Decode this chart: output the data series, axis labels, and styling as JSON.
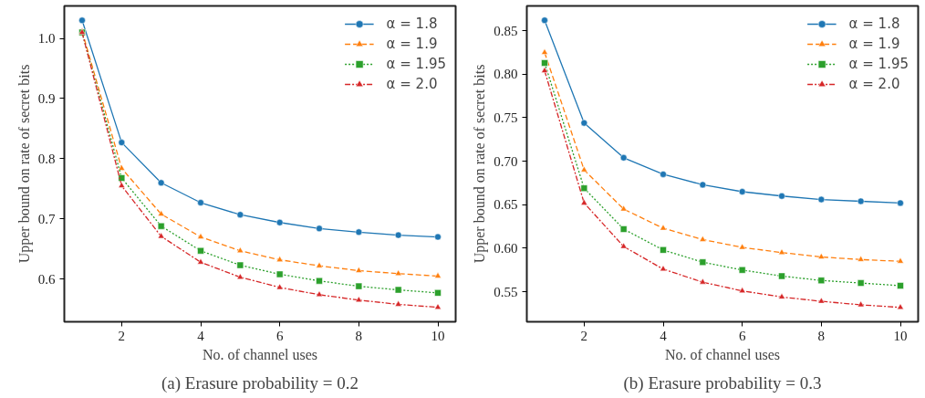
{
  "chart_data": [
    {
      "type": "line",
      "title": "(a) Erasure probability = 0.2",
      "xlabel": "No. of channel uses",
      "ylabel": "Upper bound on rate of secret bits",
      "x": [
        1,
        2,
        3,
        4,
        5,
        6,
        7,
        8,
        9,
        10
      ],
      "xlim": [
        0.55,
        10.45
      ],
      "xticks": [
        2,
        4,
        6,
        8,
        10
      ],
      "ylim": [
        0.529,
        1.054
      ],
      "yticks": [
        {
          "value": 0.6,
          "label": "0.6"
        },
        {
          "value": 0.7,
          "label": "0.7"
        },
        {
          "value": 0.8,
          "label": "0.8"
        },
        {
          "value": 0.9,
          "label": "0.9"
        },
        {
          "value": 1.0,
          "label": "1.0"
        }
      ],
      "legend": "top right",
      "grid": false,
      "series": [
        {
          "name": "α = 1.8",
          "color": "#1f77b4",
          "marker": "circle",
          "line_style": "solid",
          "values": [
            1.03,
            0.827,
            0.76,
            0.727,
            0.707,
            0.694,
            0.684,
            0.678,
            0.673,
            0.67
          ]
        },
        {
          "name": "α = 1.9",
          "color": "#ff7f0e",
          "marker": "triangle",
          "line_style": "dashed",
          "values": [
            1.012,
            0.784,
            0.708,
            0.67,
            0.647,
            0.632,
            0.622,
            0.614,
            0.609,
            0.605
          ]
        },
        {
          "name": "α = 1.95",
          "color": "#2ca02c",
          "marker": "square",
          "line_style": "dotted",
          "values": [
            1.01,
            0.768,
            0.688,
            0.647,
            0.623,
            0.608,
            0.597,
            0.588,
            0.582,
            0.577
          ]
        },
        {
          "name": "α = 2.0",
          "color": "#d62728",
          "marker": "triangle",
          "line_style": "dashdot",
          "values": [
            1.01,
            0.755,
            0.671,
            0.628,
            0.603,
            0.586,
            0.574,
            0.565,
            0.558,
            0.553
          ]
        }
      ]
    },
    {
      "type": "line",
      "title": "(b) Erasure probability = 0.3",
      "xlabel": "No. of channel uses",
      "ylabel": "Upper bound on rate of secret bits",
      "x": [
        1,
        2,
        3,
        4,
        5,
        6,
        7,
        8,
        9,
        10
      ],
      "xlim": [
        0.55,
        10.45
      ],
      "xticks": [
        2,
        4,
        6,
        8,
        10
      ],
      "ylim": [
        0.5155,
        0.8785
      ],
      "yticks": [
        {
          "value": 0.55,
          "label": "0.55"
        },
        {
          "value": 0.6,
          "label": "0.60"
        },
        {
          "value": 0.65,
          "label": "0.65"
        },
        {
          "value": 0.7,
          "label": "0.70"
        },
        {
          "value": 0.75,
          "label": "0.75"
        },
        {
          "value": 0.8,
          "label": "0.80"
        },
        {
          "value": 0.85,
          "label": "0.85"
        }
      ],
      "legend": "top right",
      "grid": false,
      "series": [
        {
          "name": "α = 1.8",
          "color": "#1f77b4",
          "marker": "circle",
          "line_style": "solid",
          "values": [
            0.862,
            0.744,
            0.704,
            0.685,
            0.673,
            0.665,
            0.66,
            0.656,
            0.654,
            0.652
          ]
        },
        {
          "name": "α = 1.9",
          "color": "#ff7f0e",
          "marker": "triangle",
          "line_style": "dashed",
          "values": [
            0.825,
            0.69,
            0.645,
            0.623,
            0.61,
            0.601,
            0.595,
            0.59,
            0.587,
            0.585
          ]
        },
        {
          "name": "α = 1.95",
          "color": "#2ca02c",
          "marker": "square",
          "line_style": "dotted",
          "values": [
            0.813,
            0.669,
            0.622,
            0.598,
            0.584,
            0.575,
            0.568,
            0.563,
            0.56,
            0.557
          ]
        },
        {
          "name": "α = 2.0",
          "color": "#d62728",
          "marker": "triangle",
          "line_style": "dashdot",
          "values": [
            0.804,
            0.652,
            0.602,
            0.576,
            0.561,
            0.551,
            0.544,
            0.539,
            0.535,
            0.532
          ]
        }
      ]
    }
  ]
}
